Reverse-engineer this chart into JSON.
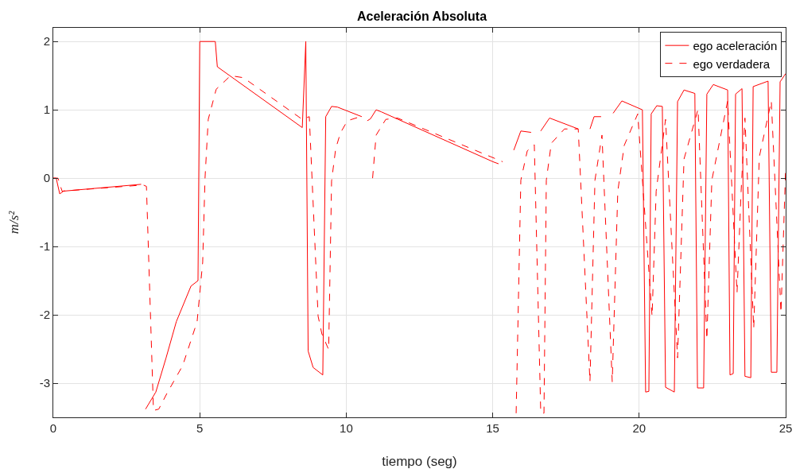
{
  "chart_data": {
    "type": "line",
    "title": "Aceleración Absoluta",
    "xlabel": "tiempo (seg)",
    "ylabel": "m/s²",
    "xlim": [
      0,
      25
    ],
    "ylim": [
      -3.5,
      2.2
    ],
    "xticks": [
      0,
      5,
      10,
      15,
      20,
      25
    ],
    "yticks": [
      -3,
      -2,
      -1,
      0,
      1,
      2
    ],
    "grid": true,
    "legend": "top right",
    "marker": "none",
    "series": [
      {
        "name": "ego aceleración",
        "color": "#ff0000",
        "line_style": "solid",
        "x": [
          0,
          0.1,
          0.22,
          0.35,
          3.0,
          3.03,
          3.15,
          3.5,
          3.85,
          4.2,
          4.7,
          4.94,
          5.0,
          5.53,
          5.6,
          8.5,
          8.62,
          8.7,
          8.87,
          9.2,
          9.3,
          9.5,
          9.7,
          10.53,
          10.55,
          10.7,
          10.72,
          10.83,
          11.02,
          11.2,
          15.01,
          15.2,
          15.28,
          15.6,
          15.72,
          15.96,
          16.31,
          16.37,
          16.6,
          16.64,
          16.94,
          17.92,
          17.98,
          18.25,
          18.32,
          18.46,
          18.7,
          18.81,
          19.0,
          19.11,
          19.41,
          20.11,
          20.22,
          20.33,
          20.41,
          20.6,
          20.79,
          20.9,
          21.2,
          21.31,
          21.53,
          21.9,
          21.99,
          22.2,
          22.31,
          22.53,
          23.02,
          23.1,
          23.21,
          23.29,
          23.51,
          23.61,
          23.81,
          23.89,
          24.4,
          24.51,
          24.7,
          24.81,
          25.0
        ],
        "values": [
          0,
          0,
          -0.23,
          -0.19,
          -0.09,
          null,
          -3.38,
          -3.13,
          -2.63,
          -2.1,
          -1.58,
          -1.5,
          2.0,
          2.0,
          1.63,
          0.74,
          2.0,
          -2.53,
          -2.77,
          -2.88,
          0.9,
          1.05,
          1.04,
          0.9,
          null,
          null,
          0.84,
          0.87,
          1.0,
          0.97,
          0.24,
          0.21,
          null,
          null,
          0.41,
          0.69,
          0.67,
          null,
          null,
          0.69,
          0.88,
          0.72,
          null,
          null,
          0.72,
          0.9,
          0.9,
          null,
          null,
          0.95,
          1.13,
          1.0,
          -3.13,
          -3.12,
          0.94,
          1.06,
          1.05,
          -3.06,
          -3.13,
          1.12,
          1.29,
          1.24,
          -3.07,
          -3.07,
          1.23,
          1.37,
          1.29,
          -2.88,
          -2.86,
          1.23,
          1.31,
          -2.9,
          -2.92,
          1.34,
          1.42,
          -2.84,
          -2.84,
          1.41,
          1.53
        ]
      },
      {
        "name": "ego verdadera",
        "color": "#ff0000",
        "line_style": "dashed",
        "x": [
          0,
          0.16,
          0.3,
          3.07,
          3.18,
          3.42,
          3.6,
          3.88,
          4.42,
          4.91,
          5.1,
          5.18,
          5.29,
          5.56,
          6.05,
          6.49,
          8.5,
          8.74,
          9.04,
          9.17,
          9.4,
          9.5,
          9.64,
          9.8,
          10.04,
          10.48,
          10.67,
          10.75,
          10.9,
          11.02,
          11.35,
          11.75,
          15.12,
          15.34,
          15.55,
          15.8,
          15.96,
          16.18,
          16.42,
          16.64,
          16.75,
          16.83,
          17.0,
          17.45,
          17.92,
          18.32,
          18.49,
          18.73,
          19.08,
          19.27,
          19.49,
          19.95,
          20.44,
          20.58,
          20.9,
          21.31,
          21.53,
          22.01,
          22.31,
          22.48,
          23.02,
          23.34,
          23.48,
          23.61,
          23.91,
          24.1,
          24.51,
          24.84,
          25.0
        ],
        "values": [
          0,
          0,
          -0.19,
          -0.1,
          -0.12,
          -3.4,
          -3.38,
          -3.15,
          -2.74,
          -2.1,
          -1.23,
          0,
          0.86,
          1.3,
          1.5,
          1.47,
          0.86,
          0.9,
          -2.02,
          -2.28,
          -2.51,
          -0.04,
          0.43,
          0.66,
          0.84,
          0.9,
          null,
          null,
          0,
          0.63,
          0.86,
          0.88,
          0.28,
          0.24,
          null,
          -3.44,
          -0.03,
          0.4,
          0.49,
          -3.44,
          -3.44,
          -0.03,
          0.51,
          0.72,
          0.72,
          -2.98,
          -0.03,
          0.63,
          -2.98,
          -0.19,
          0.48,
          0.94,
          -2.02,
          -0.19,
          0.86,
          -2.63,
          0.28,
          1.01,
          -2.36,
          -0.03,
          1.13,
          -1.68,
          -0.19,
          0.88,
          -2.2,
          0.31,
          1.13,
          -1.97,
          0.16
        ]
      }
    ]
  }
}
